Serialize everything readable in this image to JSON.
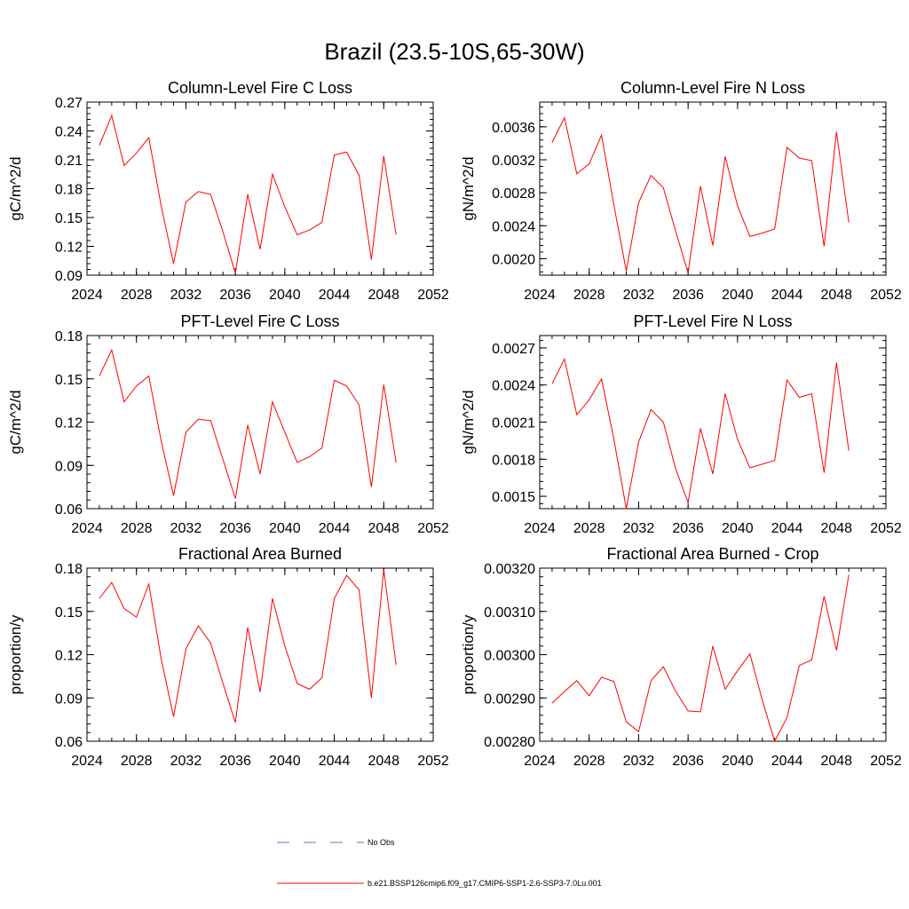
{
  "figure": {
    "title": "Brazil (23.5-10S,65-30W)"
  },
  "colors": {
    "series": "#ff0000",
    "obs": "#6b73b0",
    "axis": "#000000"
  },
  "legend": {
    "placement": "bottom-center",
    "obs_label": "No Obs",
    "model_label": "b.e21.BSSP126cmip6.f09_g17.CMIP6-SSP1-2.6-SSP3-7.0Lu.001"
  },
  "chart_data": [
    {
      "type": "line",
      "title": "Column-Level Fire C Loss",
      "ylabel": "gC/m^2/d",
      "xlim": [
        2024,
        2052
      ],
      "xticks": [
        "2024",
        "2028",
        "2032",
        "2036",
        "2040",
        "2044",
        "2048",
        "2052"
      ],
      "ylim": [
        0.09,
        0.27
      ],
      "yticks": [
        "0.09",
        "0.12",
        "0.15",
        "0.18",
        "0.21",
        "0.24",
        "0.27"
      ],
      "x": [
        2025,
        2026,
        2027,
        2028,
        2029,
        2030,
        2031,
        2032,
        2033,
        2034,
        2035,
        2036,
        2037,
        2038,
        2039,
        2040,
        2041,
        2042,
        2043,
        2044,
        2045,
        2046,
        2047,
        2048,
        2049
      ],
      "values": [
        0.225,
        0.256,
        0.204,
        0.217,
        0.233,
        0.162,
        0.102,
        0.166,
        0.177,
        0.174,
        0.135,
        0.092,
        0.174,
        0.117,
        0.195,
        0.161,
        0.132,
        0.137,
        0.145,
        0.215,
        0.218,
        0.194,
        0.106,
        0.214,
        0.132
      ]
    },
    {
      "type": "line",
      "title": "Column-Level Fire N Loss",
      "ylabel": "gN/m^2/d",
      "xlim": [
        2024,
        2052
      ],
      "xticks": [
        "2024",
        "2028",
        "2032",
        "2036",
        "2040",
        "2044",
        "2048",
        "2052"
      ],
      "ylim": [
        0.0018,
        0.0039
      ],
      "yticks": [
        "0.0020",
        "0.0024",
        "0.0028",
        "0.0032",
        "0.0036"
      ],
      "x": [
        2025,
        2026,
        2027,
        2028,
        2029,
        2030,
        2031,
        2032,
        2033,
        2034,
        2035,
        2036,
        2037,
        2038,
        2039,
        2040,
        2041,
        2042,
        2043,
        2044,
        2045,
        2046,
        2047,
        2048,
        2049
      ],
      "values": [
        0.00341,
        0.00371,
        0.00303,
        0.00315,
        0.0035,
        0.00265,
        0.00185,
        0.00268,
        0.00301,
        0.00286,
        0.00233,
        0.00183,
        0.00288,
        0.00216,
        0.00324,
        0.00264,
        0.00227,
        0.00231,
        0.00236,
        0.00335,
        0.00322,
        0.00319,
        0.00215,
        0.00354,
        0.00244
      ]
    },
    {
      "type": "line",
      "title": "PFT-Level Fire C Loss",
      "ylabel": "gC/m^2/d",
      "xlim": [
        2024,
        2052
      ],
      "xticks": [
        "2024",
        "2028",
        "2032",
        "2036",
        "2040",
        "2044",
        "2048",
        "2052"
      ],
      "ylim": [
        0.06,
        0.18
      ],
      "yticks": [
        "0.06",
        "0.09",
        "0.12",
        "0.15",
        "0.18"
      ],
      "x": [
        2025,
        2026,
        2027,
        2028,
        2029,
        2030,
        2031,
        2032,
        2033,
        2034,
        2035,
        2036,
        2037,
        2038,
        2039,
        2040,
        2041,
        2042,
        2043,
        2044,
        2045,
        2046,
        2047,
        2048,
        2049
      ],
      "values": [
        0.152,
        0.17,
        0.134,
        0.145,
        0.152,
        0.107,
        0.069,
        0.113,
        0.122,
        0.121,
        0.094,
        0.067,
        0.118,
        0.084,
        0.134,
        0.113,
        0.092,
        0.096,
        0.102,
        0.149,
        0.145,
        0.132,
        0.075,
        0.146,
        0.092
      ]
    },
    {
      "type": "line",
      "title": "PFT-Level Fire N Loss",
      "ylabel": "gN/m^2/d",
      "xlim": [
        2024,
        2052
      ],
      "xticks": [
        "2024",
        "2028",
        "2032",
        "2036",
        "2040",
        "2044",
        "2048",
        "2052"
      ],
      "ylim": [
        0.0014,
        0.0028
      ],
      "yticks": [
        "0.0015",
        "0.0018",
        "0.0021",
        "0.0024",
        "0.0027"
      ],
      "x": [
        2025,
        2026,
        2027,
        2028,
        2029,
        2030,
        2031,
        2032,
        2033,
        2034,
        2035,
        2036,
        2037,
        2038,
        2039,
        2040,
        2041,
        2042,
        2043,
        2044,
        2045,
        2046,
        2047,
        2048,
        2049
      ],
      "values": [
        0.00241,
        0.00261,
        0.00216,
        0.00228,
        0.00245,
        0.00196,
        0.0014,
        0.00194,
        0.0022,
        0.0021,
        0.00172,
        0.00145,
        0.00205,
        0.00168,
        0.00233,
        0.00196,
        0.00173,
        0.00176,
        0.00179,
        0.00244,
        0.0023,
        0.00233,
        0.00169,
        0.00258,
        0.00187
      ]
    },
    {
      "type": "line",
      "title": "Fractional Area Burned",
      "ylabel": "proportion/y",
      "xlim": [
        2024,
        2052
      ],
      "xticks": [
        "2024",
        "2028",
        "2032",
        "2036",
        "2040",
        "2044",
        "2048",
        "2052"
      ],
      "ylim": [
        0.06,
        0.18
      ],
      "yticks": [
        "0.06",
        "0.09",
        "0.12",
        "0.15",
        "0.18"
      ],
      "x": [
        2025,
        2026,
        2027,
        2028,
        2029,
        2030,
        2031,
        2032,
        2033,
        2034,
        2035,
        2036,
        2037,
        2038,
        2039,
        2040,
        2041,
        2042,
        2043,
        2044,
        2045,
        2046,
        2047,
        2048,
        2049
      ],
      "values": [
        0.159,
        0.17,
        0.152,
        0.146,
        0.169,
        0.117,
        0.077,
        0.124,
        0.14,
        0.128,
        0.1,
        0.073,
        0.139,
        0.094,
        0.159,
        0.126,
        0.1,
        0.096,
        0.104,
        0.159,
        0.175,
        0.165,
        0.09,
        0.179,
        0.113
      ]
    },
    {
      "type": "line",
      "title": "Fractional Area Burned - Crop",
      "ylabel": "proportion/y",
      "xlim": [
        2024,
        2052
      ],
      "xticks": [
        "2024",
        "2028",
        "2032",
        "2036",
        "2040",
        "2044",
        "2048",
        "2052"
      ],
      "ylim": [
        0.0028,
        0.0032
      ],
      "yticks": [
        "0.00280",
        "0.00290",
        "0.00300",
        "0.00310",
        "0.00320"
      ],
      "x": [
        2025,
        2026,
        2027,
        2028,
        2029,
        2030,
        2031,
        2032,
        2033,
        2034,
        2035,
        2036,
        2037,
        2038,
        2039,
        2040,
        2041,
        2042,
        2043,
        2044,
        2045,
        2046,
        2047,
        2048,
        2049
      ],
      "values": [
        0.002888,
        0.002915,
        0.00294,
        0.002905,
        0.002948,
        0.002938,
        0.002845,
        0.002822,
        0.00294,
        0.002972,
        0.002915,
        0.00287,
        0.002868,
        0.00302,
        0.00292,
        0.002963,
        0.003002,
        0.002895,
        0.0028,
        0.002855,
        0.002975,
        0.002988,
        0.003135,
        0.00301,
        0.003185
      ]
    }
  ]
}
